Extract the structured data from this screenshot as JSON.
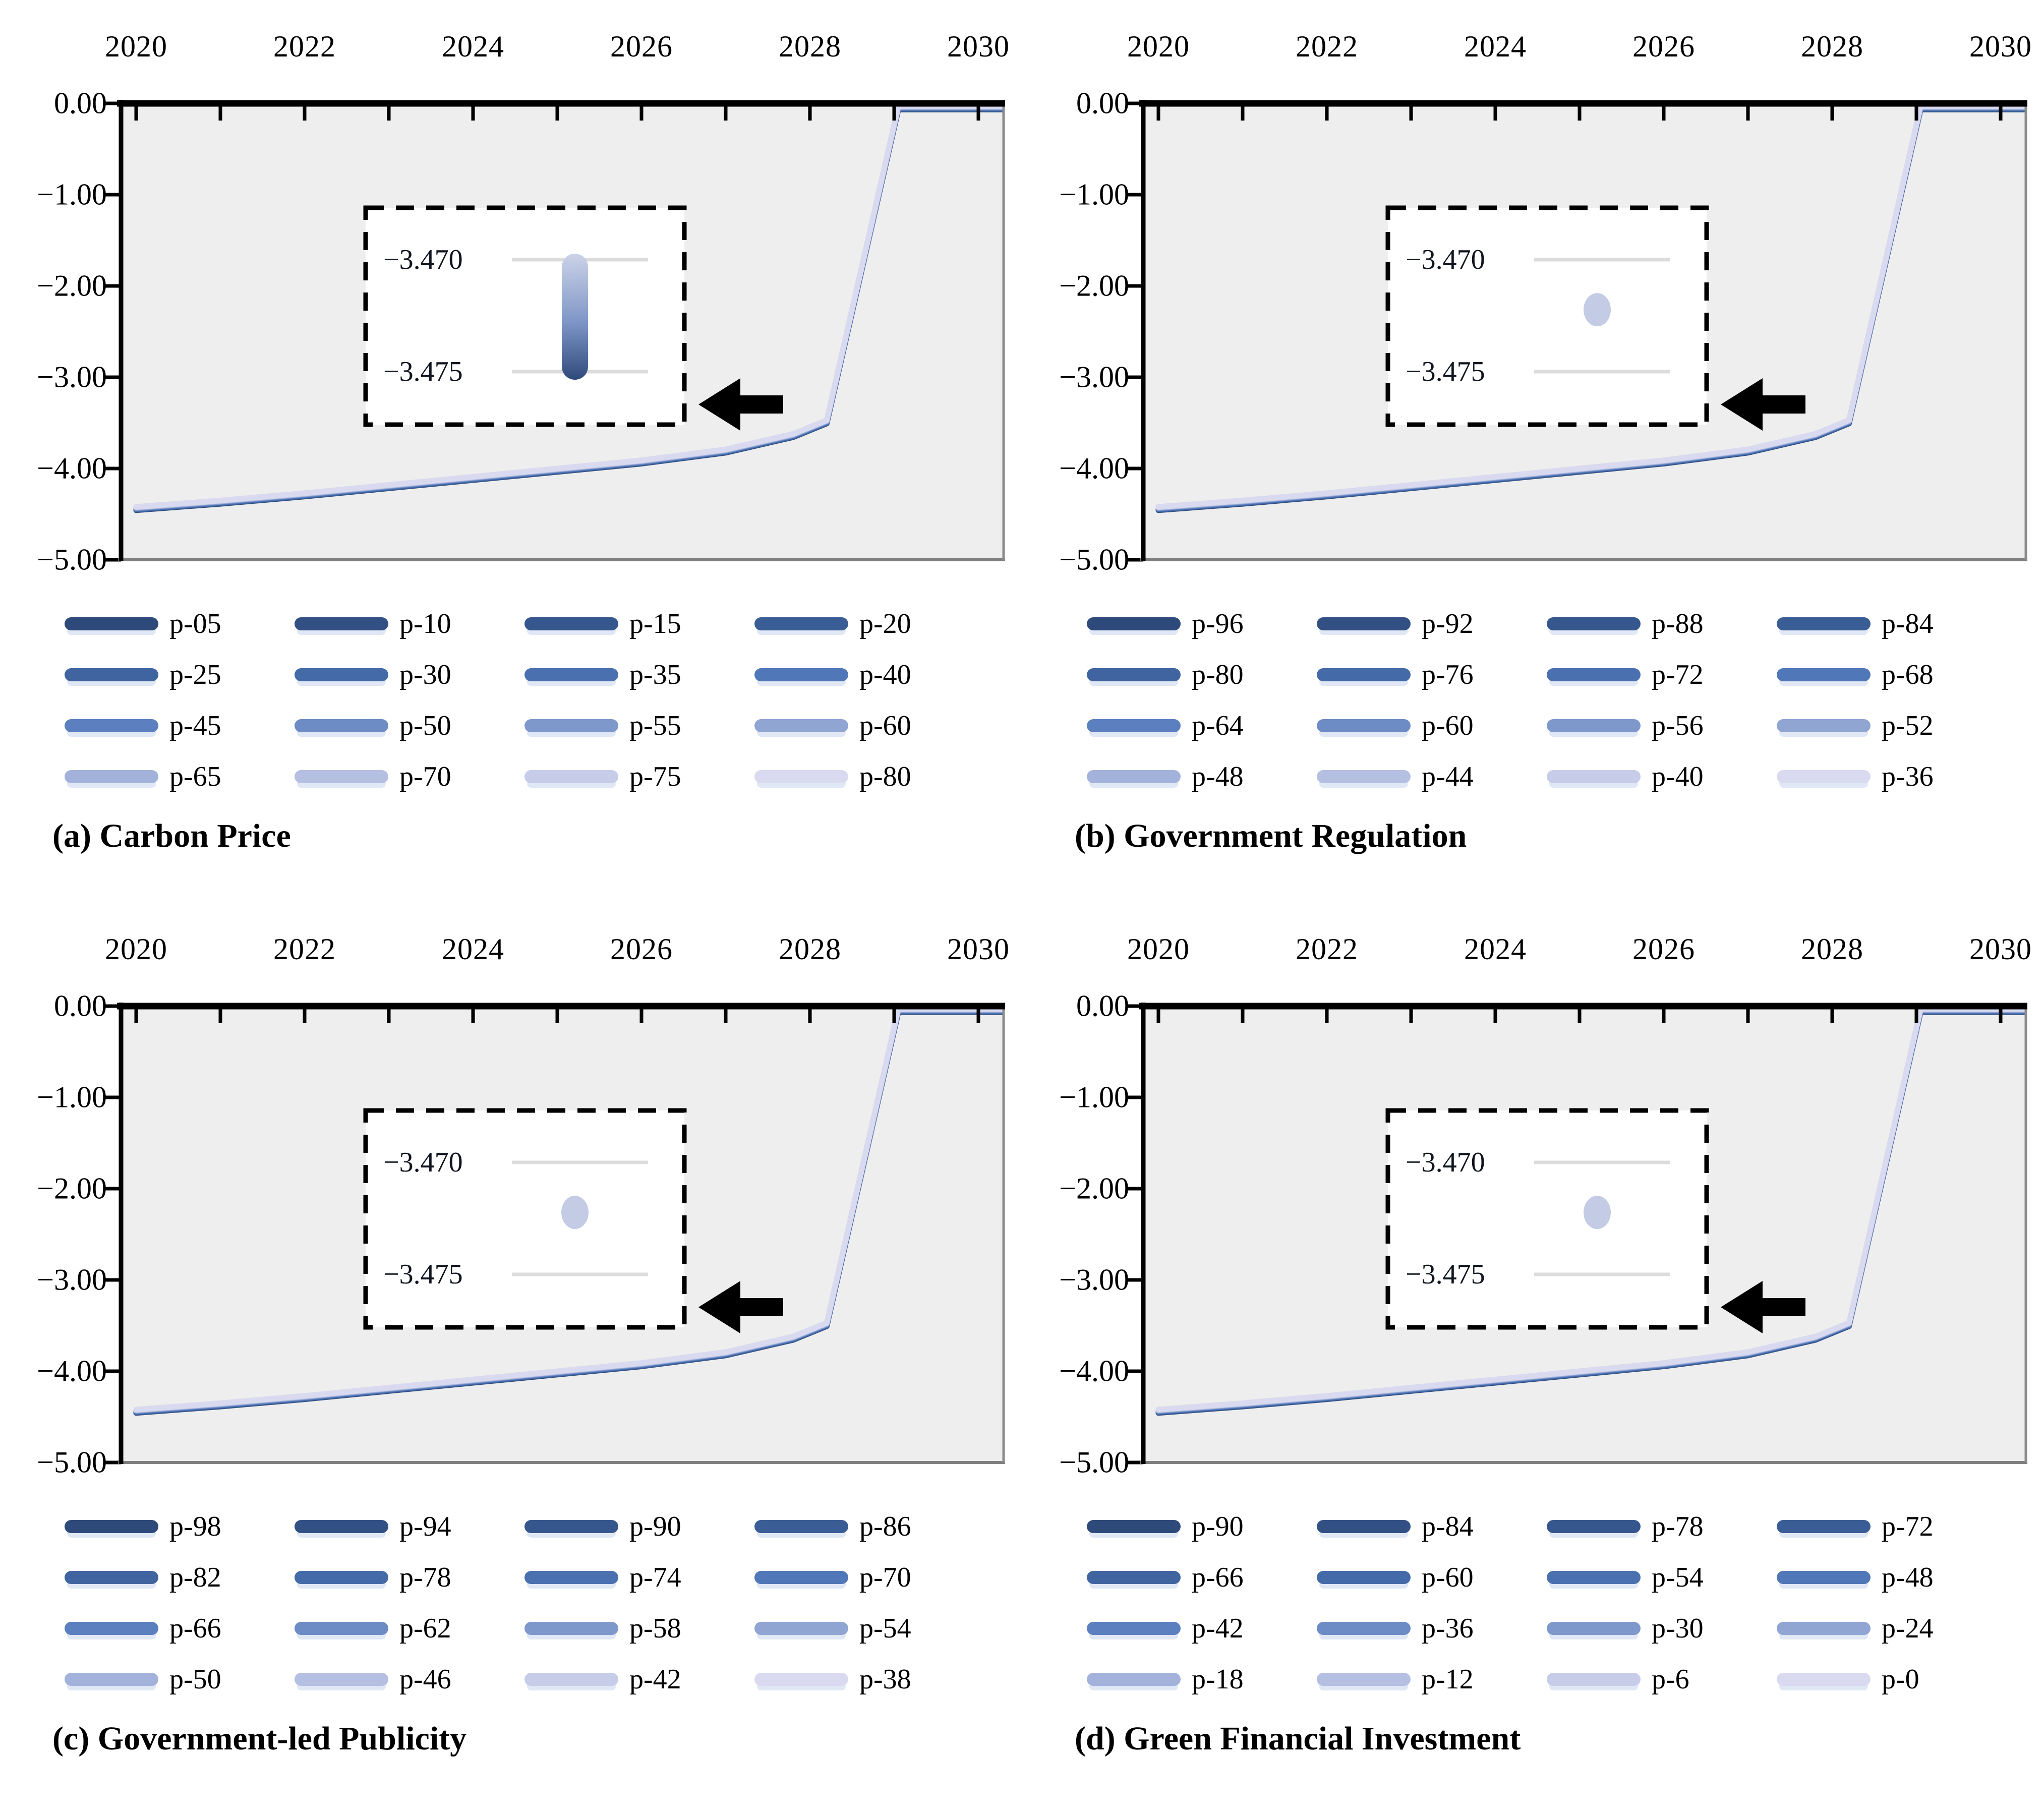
{
  "axes": {
    "x_tick_labels": [
      "2020",
      "2022",
      "2024",
      "2026",
      "2028",
      "2030"
    ],
    "y_tick_labels": [
      "0.00",
      "−1.00",
      "−2.00",
      "−3.00",
      "−4.00",
      "−5.00"
    ]
  },
  "inset": {
    "tick_labels": [
      "−3.470",
      "−3.475"
    ]
  },
  "colors": {
    "plot_bg": "#eeeeee",
    "axis_black": "#000000",
    "axis_gray": "#7f7f7f",
    "axis_right_gray": "#8c8c8c",
    "inset_grid": "#dcdcdc",
    "inset_dot": "#c3cce4",
    "inset_bar_top": "#ccd3e8",
    "inset_bar_mid": "#7d95c6",
    "inset_bar_bottom": "#2e4a7b",
    "arrow": "#000000",
    "ramp": [
      "#2e4a7b",
      "#325084",
      "#36578d",
      "#3b5d96",
      "#40649f",
      "#456aa8",
      "#4a70b0",
      "#5077b8",
      "#5c80bf",
      "#6d8cc5",
      "#7f98cc",
      "#91a5d3",
      "#a3b2da",
      "#b5bfe2",
      "#c7cce9",
      "#d9d9ef"
    ]
  },
  "panels": [
    {
      "caption": "(a) Carbon Price",
      "legend": [
        "p-05",
        "p-10",
        "p-15",
        "p-20",
        "p-25",
        "p-30",
        "p-35",
        "p-40",
        "p-45",
        "p-50",
        "p-55",
        "p-60",
        "p-65",
        "p-70",
        "p-75",
        "p-80"
      ]
    },
    {
      "caption": "(b) Government Regulation",
      "legend": [
        "p-96",
        "p-92",
        "p-88",
        "p-84",
        "p-80",
        "p-76",
        "p-72",
        "p-68",
        "p-64",
        "p-60",
        "p-56",
        "p-52",
        "p-48",
        "p-44",
        "p-40",
        "p-36"
      ]
    },
    {
      "caption": "(c) Government-led Publicity",
      "legend": [
        "p-98",
        "p-94",
        "p-90",
        "p-86",
        "p-82",
        "p-78",
        "p-74",
        "p-70",
        "p-66",
        "p-62",
        "p-58",
        "p-54",
        "p-50",
        "p-46",
        "p-42",
        "p-38"
      ]
    },
    {
      "caption": "(d) Green Financial Investment",
      "legend": [
        "p-90",
        "p-84",
        "p-78",
        "p-72",
        "p-66",
        "p-60",
        "p-54",
        "p-48",
        "p-42",
        "p-36",
        "p-30",
        "p-24",
        "p-18",
        "p-12",
        "p-6",
        "p-0"
      ]
    }
  ],
  "chart_data": [
    {
      "type": "line",
      "title": "(a) Carbon Price",
      "x": [
        2020,
        2021,
        2022,
        2023,
        2024,
        2025,
        2026,
        2027,
        2027.8,
        2028.2,
        2029.05,
        2030
      ],
      "base_values": [
        -4.42,
        -4.35,
        -4.27,
        -4.18,
        -4.09,
        -4.0,
        -3.91,
        -3.79,
        -3.62,
        -3.47,
        -0.03,
        -0.03
      ],
      "series_names": [
        "p-05",
        "p-10",
        "p-15",
        "p-20",
        "p-25",
        "p-30",
        "p-35",
        "p-40",
        "p-45",
        "p-50",
        "p-55",
        "p-60",
        "p-65",
        "p-70",
        "p-75",
        "p-80"
      ],
      "series_note": "All 16 scenario curves overlap; spread at the 2028 inflection is about −3.470 to −3.475 (shown in inset)",
      "xlim": [
        2019.8,
        2030.3
      ],
      "ylim": [
        -5,
        0
      ],
      "x_ticks": [
        2020,
        2022,
        2024,
        2026,
        2028,
        2030
      ],
      "grid": false,
      "legend_position": "below",
      "inset_marker": "gradient-bar",
      "inset_axis_labels": [
        "−3.470",
        "−3.475"
      ]
    },
    {
      "type": "line",
      "title": "(b) Government Regulation",
      "x": [
        2020,
        2021,
        2022,
        2023,
        2024,
        2025,
        2026,
        2027,
        2027.8,
        2028.2,
        2029.05,
        2030
      ],
      "base_values": [
        -4.42,
        -4.35,
        -4.27,
        -4.18,
        -4.09,
        -4.0,
        -3.91,
        -3.79,
        -3.62,
        -3.47,
        -0.03,
        -0.03
      ],
      "series_names": [
        "p-96",
        "p-92",
        "p-88",
        "p-84",
        "p-80",
        "p-76",
        "p-72",
        "p-68",
        "p-64",
        "p-60",
        "p-56",
        "p-52",
        "p-48",
        "p-44",
        "p-40",
        "p-36"
      ],
      "series_note": "All 16 scenario curves coincide; inset shows a single overlapping point between −3.470 and −3.475",
      "xlim": [
        2019.8,
        2030.3
      ],
      "ylim": [
        -5,
        0
      ],
      "x_ticks": [
        2020,
        2022,
        2024,
        2026,
        2028,
        2030
      ],
      "grid": false,
      "legend_position": "below",
      "inset_marker": "dot",
      "inset_axis_labels": [
        "−3.470",
        "−3.475"
      ]
    },
    {
      "type": "line",
      "title": "(c) Government-led Publicity",
      "x": [
        2020,
        2021,
        2022,
        2023,
        2024,
        2025,
        2026,
        2027,
        2027.8,
        2028.2,
        2029.05,
        2030
      ],
      "base_values": [
        -4.42,
        -4.35,
        -4.27,
        -4.18,
        -4.09,
        -4.0,
        -3.91,
        -3.79,
        -3.62,
        -3.47,
        -0.03,
        -0.03
      ],
      "series_names": [
        "p-98",
        "p-94",
        "p-90",
        "p-86",
        "p-82",
        "p-78",
        "p-74",
        "p-70",
        "p-66",
        "p-62",
        "p-58",
        "p-54",
        "p-50",
        "p-46",
        "p-42",
        "p-38"
      ],
      "series_note": "All 16 scenario curves coincide; inset shows a single overlapping point between −3.470 and −3.475",
      "xlim": [
        2019.8,
        2030.3
      ],
      "ylim": [
        -5,
        0
      ],
      "x_ticks": [
        2020,
        2022,
        2024,
        2026,
        2028,
        2030
      ],
      "grid": false,
      "legend_position": "below",
      "inset_marker": "dot",
      "inset_axis_labels": [
        "−3.470",
        "−3.475"
      ]
    },
    {
      "type": "line",
      "title": "(d) Green Financial Investment",
      "x": [
        2020,
        2021,
        2022,
        2023,
        2024,
        2025,
        2026,
        2027,
        2027.8,
        2028.2,
        2029.05,
        2030
      ],
      "base_values": [
        -4.42,
        -4.35,
        -4.27,
        -4.18,
        -4.09,
        -4.0,
        -3.91,
        -3.79,
        -3.62,
        -3.47,
        -0.03,
        -0.03
      ],
      "series_names": [
        "p-90",
        "p-84",
        "p-78",
        "p-72",
        "p-66",
        "p-60",
        "p-54",
        "p-48",
        "p-42",
        "p-36",
        "p-30",
        "p-24",
        "p-18",
        "p-12",
        "p-6",
        "p-0"
      ],
      "series_note": "All 16 scenario curves coincide; inset shows a single overlapping point between −3.470 and −3.475",
      "xlim": [
        2019.8,
        2030.3
      ],
      "ylim": [
        -5,
        0
      ],
      "x_ticks": [
        2020,
        2022,
        2024,
        2026,
        2028,
        2030
      ],
      "grid": false,
      "legend_position": "below",
      "inset_marker": "dot",
      "inset_axis_labels": [
        "−3.470",
        "−3.475"
      ]
    }
  ]
}
